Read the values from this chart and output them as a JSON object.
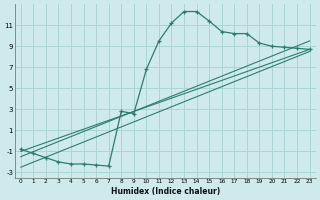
{
  "xlabel": "Humidex (Indice chaleur)",
  "bg_color": "#ceeaec",
  "grid_color": "#aad4d6",
  "line_color": "#2d7d6e",
  "xlim": [
    -0.5,
    23.5
  ],
  "ylim": [
    -3.5,
    13.0
  ],
  "xticks": [
    0,
    1,
    2,
    3,
    4,
    5,
    6,
    7,
    8,
    9,
    10,
    11,
    12,
    13,
    14,
    15,
    16,
    17,
    18,
    19,
    20,
    21,
    22,
    23
  ],
  "yticks": [
    -3,
    -1,
    1,
    3,
    5,
    7,
    9,
    11
  ],
  "curve_x": [
    0,
    1,
    2,
    3,
    4,
    5,
    6,
    7,
    8,
    9,
    10,
    11,
    12,
    13,
    14,
    15,
    16,
    17,
    18,
    19,
    20,
    21,
    22,
    23
  ],
  "curve_y": [
    -0.8,
    -1.2,
    -1.6,
    -2.0,
    -2.2,
    -2.2,
    -2.3,
    -2.4,
    2.8,
    2.6,
    6.8,
    9.5,
    11.2,
    12.3,
    12.3,
    11.4,
    10.4,
    10.2,
    10.2,
    9.3,
    9.0,
    8.9,
    8.8,
    8.7
  ],
  "line1_x": [
    0,
    23
  ],
  "line1_y": [
    -1.5,
    9.5
  ],
  "line2_x": [
    0,
    23
  ],
  "line2_y": [
    -2.5,
    8.5
  ],
  "line3_x": [
    0,
    23
  ],
  "line3_y": [
    -1.0,
    8.7
  ]
}
